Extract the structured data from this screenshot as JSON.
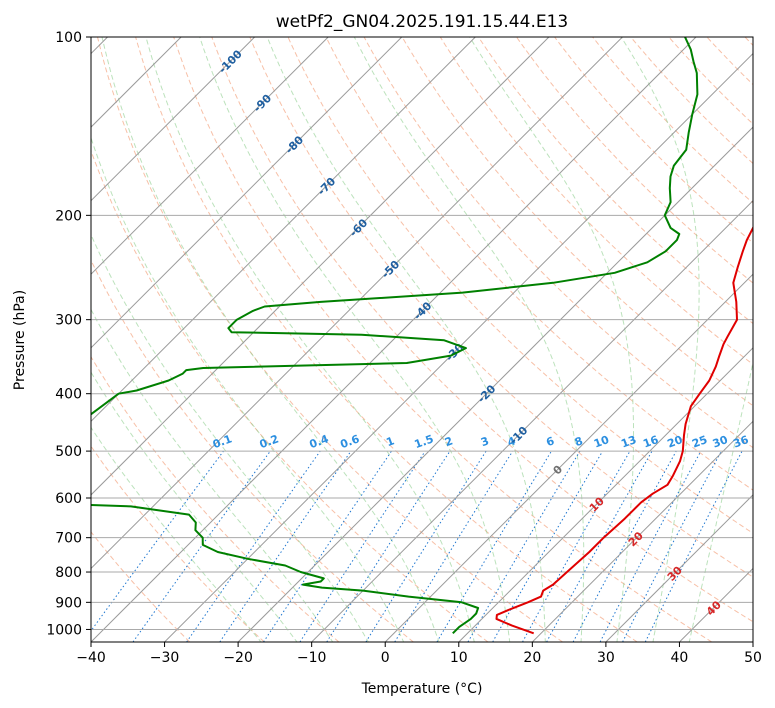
{
  "chart_data": {
    "type": "skew-t log-p",
    "title": "wetPf2_GN04.2025.191.15.44.E13",
    "xlabel": "Temperature (°C)",
    "ylabel": "Pressure (hPa)",
    "xlim": [
      -40,
      50
    ],
    "ylim": [
      1050,
      100
    ],
    "y_scale": "log",
    "grid": true,
    "x_ticks": [
      -40,
      -30,
      -20,
      -10,
      0,
      10,
      20,
      30,
      40,
      50
    ],
    "y_ticks": [
      100,
      200,
      300,
      400,
      500,
      600,
      700,
      800,
      900,
      1000
    ],
    "series": [
      {
        "color": "#e00000",
        "points": [
          [
            1015,
            19
          ],
          [
            985,
            15
          ],
          [
            960,
            12
          ],
          [
            945,
            11.5
          ],
          [
            925,
            12.5
          ],
          [
            900,
            14
          ],
          [
            880,
            15
          ],
          [
            860,
            14.5
          ],
          [
            840,
            15
          ],
          [
            800,
            15.2
          ],
          [
            740,
            15.5
          ],
          [
            700,
            15.5
          ],
          [
            650,
            15.8
          ],
          [
            610,
            15.8
          ],
          [
            590,
            16.2
          ],
          [
            570,
            17
          ],
          [
            550,
            16.5
          ],
          [
            520,
            15.5
          ],
          [
            500,
            14.5
          ],
          [
            470,
            12.5
          ],
          [
            450,
            11.2
          ],
          [
            420,
            9.5
          ],
          [
            400,
            9.0
          ],
          [
            380,
            8.5
          ],
          [
            360,
            7.5
          ],
          [
            345,
            6.5
          ],
          [
            330,
            5.5
          ],
          [
            320,
            5.0
          ],
          [
            300,
            4.0
          ],
          [
            280,
            1.5
          ],
          [
            260,
            -1.5
          ],
          [
            245,
            -3.0
          ],
          [
            230,
            -4.5
          ],
          [
            220,
            -5.5
          ],
          [
            210,
            -6.3
          ],
          [
            200,
            -7.0
          ],
          [
            190,
            -7.5
          ],
          [
            180,
            -8.0
          ],
          [
            172,
            -8.7
          ],
          [
            165,
            -10.5
          ],
          [
            158,
            -12.0
          ],
          [
            150,
            -13.5
          ],
          [
            140,
            -15.5
          ],
          [
            132,
            -17.5
          ],
          [
            125,
            -20.0
          ],
          [
            120,
            -22.0
          ],
          [
            115,
            -24.0
          ],
          [
            110,
            -26.5
          ],
          [
            105,
            -29.0
          ],
          [
            100,
            -31.0
          ]
        ]
      },
      {
        "color": "#008000",
        "points": [
          [
            1015,
            8
          ],
          [
            990,
            8
          ],
          [
            960,
            8.5
          ],
          [
            940,
            8.5
          ],
          [
            920,
            8
          ],
          [
            900,
            5
          ],
          [
            880,
            -3
          ],
          [
            860,
            -10
          ],
          [
            850,
            -16
          ],
          [
            840,
            -19
          ],
          [
            830,
            -17
          ],
          [
            820,
            -17
          ],
          [
            800,
            -21
          ],
          [
            780,
            -24
          ],
          [
            760,
            -30
          ],
          [
            740,
            -35
          ],
          [
            720,
            -38
          ],
          [
            700,
            -39
          ],
          [
            680,
            -41
          ],
          [
            660,
            -42
          ],
          [
            640,
            -44
          ],
          [
            620,
            -53
          ],
          [
            607,
            -75
          ],
          [
            400,
            -70
          ],
          [
            395,
            -68
          ],
          [
            380,
            -65
          ],
          [
            370,
            -64
          ],
          [
            365,
            -64
          ],
          [
            362,
            -62
          ],
          [
            355,
            -35
          ],
          [
            345,
            -30
          ],
          [
            335,
            -29
          ],
          [
            325,
            -33
          ],
          [
            318,
            -45
          ],
          [
            315,
            -63
          ],
          [
            310,
            -64
          ],
          [
            300,
            -64
          ],
          [
            290,
            -63
          ],
          [
            285,
            -62
          ],
          [
            280,
            -55
          ],
          [
            270,
            -37
          ],
          [
            260,
            -26
          ],
          [
            250,
            -19
          ],
          [
            240,
            -16
          ],
          [
            230,
            -15
          ],
          [
            220,
            -15
          ],
          [
            215,
            -15.5
          ],
          [
            210,
            -17.5
          ],
          [
            200,
            -20
          ],
          [
            190,
            -21
          ],
          [
            180,
            -23
          ],
          [
            172,
            -24.5
          ],
          [
            165,
            -25.5
          ],
          [
            155,
            -26
          ],
          [
            145,
            -28
          ],
          [
            135,
            -30
          ],
          [
            125,
            -32
          ],
          [
            115,
            -35
          ],
          [
            110,
            -37
          ],
          [
            105,
            -39
          ],
          [
            100,
            -41.5
          ]
        ]
      }
    ],
    "isotherm_labels": [
      "-100",
      "-90",
      "-80",
      "-70",
      "-60",
      "-50",
      "-40",
      "-30",
      "-20",
      "-10",
      "0",
      "10",
      "20",
      "30",
      "40"
    ],
    "mixing_ratio_labels": [
      "0.1",
      "0.2",
      "0.4",
      "0.6",
      "1",
      "1.5",
      "2",
      "3",
      "4",
      "6",
      "8",
      "10",
      "13",
      "16",
      "20",
      "25",
      "30",
      "36"
    ]
  }
}
